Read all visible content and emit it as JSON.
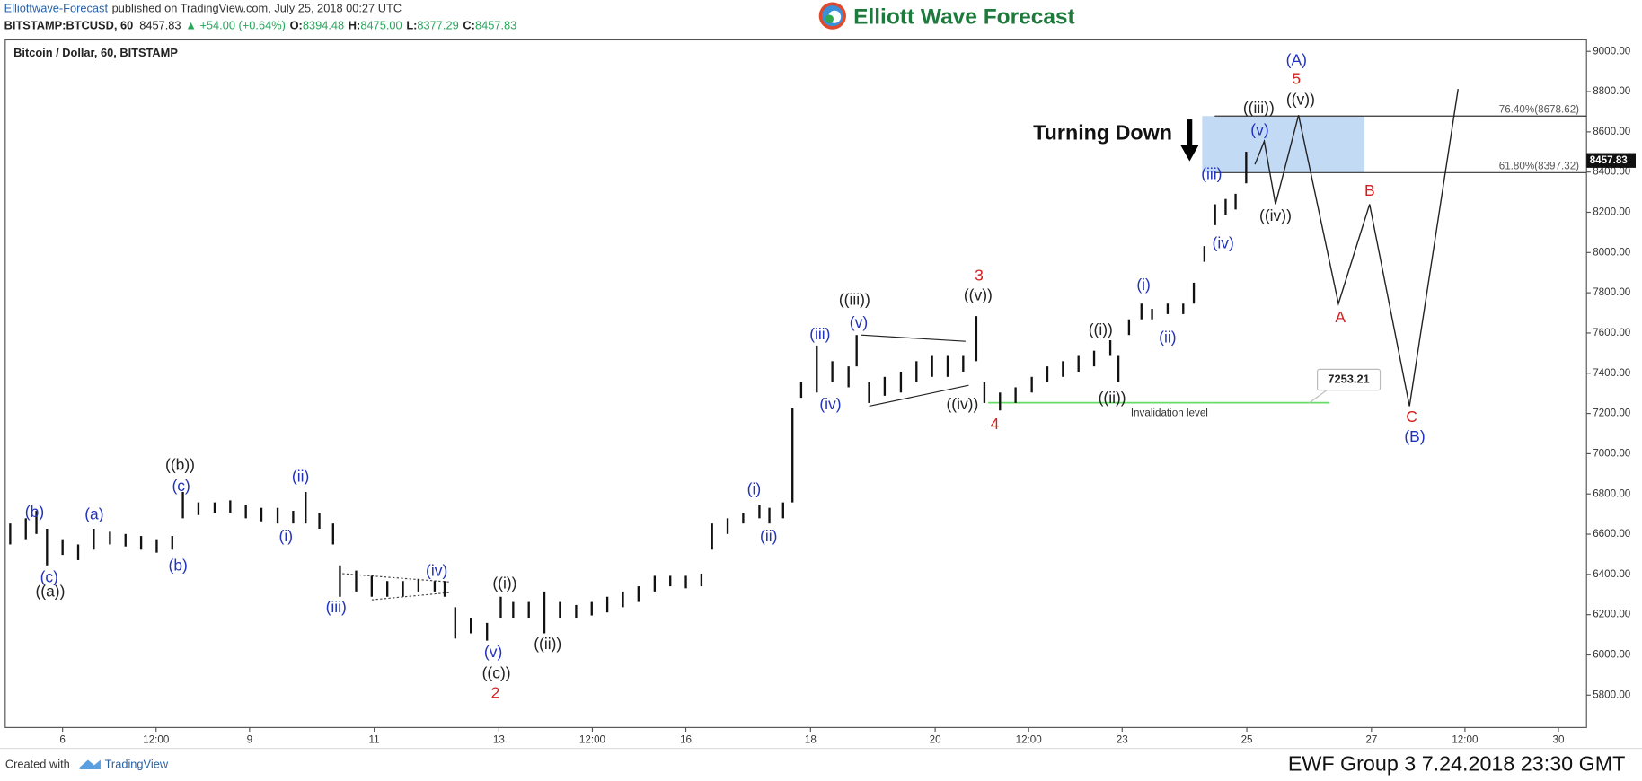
{
  "header": {
    "publisher": "Elliottwave-Forecast",
    "published": "published on TradingView.com, July 25, 2018 00:27 UTC",
    "symbol": "BITSTAMP:BTCUSD, 60",
    "last": "8457.83",
    "change": "▲ +54.00 (+0.64%)",
    "ohlc": [
      {
        "label": "O:",
        "value": "8394.48"
      },
      {
        "label": "H:",
        "value": "8475.00"
      },
      {
        "label": "L:",
        "value": "8377.29"
      },
      {
        "label": "C:",
        "value": "8457.83"
      }
    ],
    "logo": "Elliott Wave Forecast"
  },
  "footer": {
    "created": "Created with",
    "brand": "TradingView",
    "stamp": "EWF Group 3 7.24.2018 23:30 GMT"
  },
  "chart_data": {
    "type": "ohlc",
    "title": "Bitcoin / Dollar, 60, BITSTAMP",
    "color": "#111111",
    "x": [
      5.16,
      5.41,
      5.58,
      5.75,
      6.0,
      6.25,
      6.5,
      6.76,
      7.01,
      7.26,
      7.51,
      7.76,
      7.93,
      8.18,
      8.44,
      8.69,
      8.94,
      9.19,
      9.45,
      9.7,
      9.9,
      10.12,
      10.34,
      10.45,
      10.71,
      10.96,
      11.21,
      11.46,
      11.71,
      11.97,
      12.13,
      12.3,
      12.55,
      12.81,
      13.03,
      13.23,
      13.48,
      13.73,
      13.98,
      14.24,
      14.49,
      14.74,
      14.99,
      15.24,
      15.5,
      15.75,
      16.0,
      16.25,
      16.42,
      16.67,
      16.92,
      17.18,
      17.34,
      17.56,
      17.71,
      17.85,
      18.1,
      18.35,
      18.61,
      18.74,
      18.94,
      19.19,
      19.45,
      19.7,
      19.95,
      20.2,
      20.45,
      20.66,
      20.79,
      21.04,
      21.29,
      21.55,
      21.8,
      22.05,
      22.3,
      22.55,
      22.81,
      22.94,
      23.11,
      23.31,
      23.48,
      23.73,
      23.98,
      24.15,
      24.32,
      24.49,
      24.66,
      24.82,
      24.99
    ],
    "high": [
      6653,
      6679,
      6716,
      6627,
      6575,
      6549,
      6627,
      6612,
      6601,
      6591,
      6575,
      6591,
      6810,
      6758,
      6758,
      6768,
      6747,
      6731,
      6731,
      6716,
      6810,
      6706,
      6653,
      6445,
      6419,
      6393,
      6367,
      6367,
      6378,
      6367,
      6367,
      6237,
      6185,
      6159,
      6289,
      6263,
      6263,
      6315,
      6263,
      6248,
      6263,
      6289,
      6315,
      6341,
      6393,
      6393,
      6393,
      6404,
      6653,
      6679,
      6706,
      6747,
      6731,
      6758,
      7226,
      7356,
      7538,
      7460,
      7434,
      7590,
      7356,
      7382,
      7408,
      7460,
      7486,
      7486,
      7486,
      7684,
      7356,
      7304,
      7330,
      7382,
      7434,
      7460,
      7486,
      7512,
      7564,
      7486,
      7668,
      7746,
      7720,
      7746,
      7746,
      7850,
      8032,
      8240,
      8266,
      8292,
      8501
    ],
    "low": [
      6549,
      6575,
      6601,
      6445,
      6497,
      6471,
      6523,
      6549,
      6539,
      6523,
      6508,
      6523,
      6679,
      6695,
      6706,
      6706,
      6679,
      6664,
      6653,
      6653,
      6653,
      6627,
      6549,
      6289,
      6315,
      6289,
      6289,
      6289,
      6315,
      6315,
      6289,
      6081,
      6107,
      6071,
      6185,
      6185,
      6185,
      6107,
      6185,
      6185,
      6196,
      6211,
      6237,
      6263,
      6315,
      6341,
      6331,
      6341,
      6523,
      6601,
      6653,
      6679,
      6653,
      6679,
      6758,
      7278,
      7304,
      7356,
      7330,
      7434,
      7252,
      7288,
      7304,
      7356,
      7382,
      7382,
      7408,
      7460,
      7252,
      7215,
      7252,
      7304,
      7356,
      7382,
      7408,
      7434,
      7486,
      7356,
      7590,
      7668,
      7668,
      7694,
      7694,
      7746,
      7954,
      8136,
      8188,
      8214,
      8344
    ],
    "last_price": 8457.83,
    "projection": {
      "x": [
        25.13,
        25.28,
        25.46,
        25.83,
        26.47,
        26.97,
        27.61,
        28.39
      ],
      "values": [
        8438,
        8553,
        8240,
        8683,
        7746,
        8240,
        7236,
        8813
      ]
    },
    "fib_levels": [
      {
        "value": 8678.62,
        "label": "76.40%(8678.62)"
      },
      {
        "value": 8397.32,
        "label": "61.80%(8397.32)"
      }
    ],
    "target_zone_color": "#b9d3f2",
    "invalidation": {
      "value": 7253.21,
      "label": "Invalidation level",
      "from": 20.85,
      "to": 26.33,
      "color": "#66dd66"
    },
    "callout": "Turning Down",
    "annotations": [
      {
        "text": "(b)",
        "color": "#2233bb"
      },
      {
        "text": "(c)",
        "color": "#2233bb"
      },
      {
        "text": "((a))",
        "color": "#222222"
      },
      {
        "text": "(a)",
        "color": "#2233bb"
      },
      {
        "text": "((b))",
        "color": "#222222"
      },
      {
        "text": "(c)",
        "color": "#2233bb"
      },
      {
        "text": "(b)",
        "color": "#2233bb"
      },
      {
        "text": "(ii)",
        "color": "#2233bb"
      },
      {
        "text": "(i)",
        "color": "#2233bb"
      },
      {
        "text": "(iii)",
        "color": "#2233bb"
      },
      {
        "text": "(iv)",
        "color": "#2233bb"
      },
      {
        "text": "(v)",
        "color": "#2233bb"
      },
      {
        "text": "((c))",
        "color": "#222222"
      },
      {
        "text": "2",
        "color": "#d42020"
      },
      {
        "text": "((i))",
        "color": "#222222"
      },
      {
        "text": "((ii))",
        "color": "#222222"
      },
      {
        "text": "(i)",
        "color": "#2233bb"
      },
      {
        "text": "(ii)",
        "color": "#2233bb"
      },
      {
        "text": "(iii)",
        "color": "#2233bb"
      },
      {
        "text": "(iv)",
        "color": "#2233bb"
      },
      {
        "text": "((iii))",
        "color": "#222222"
      },
      {
        "text": "(v)",
        "color": "#2233bb"
      },
      {
        "text": "3",
        "color": "#d42020"
      },
      {
        "text": "((v))",
        "color": "#222222"
      },
      {
        "text": "((iv))",
        "color": "#222222"
      },
      {
        "text": "4",
        "color": "#d42020"
      },
      {
        "text": "((i))",
        "color": "#222222"
      },
      {
        "text": "((ii))",
        "color": "#222222"
      },
      {
        "text": "(i)",
        "color": "#2233bb"
      },
      {
        "text": "(ii)",
        "color": "#2233bb"
      },
      {
        "text": "(iii)",
        "color": "#2233bb"
      },
      {
        "text": "(iv)",
        "color": "#2233bb"
      },
      {
        "text": "(v)",
        "color": "#2233bb"
      },
      {
        "text": "((iii))",
        "color": "#222222"
      },
      {
        "text": "((v))",
        "color": "#222222"
      },
      {
        "text": "((iv))",
        "color": "#222222"
      },
      {
        "text": "(A)",
        "color": "#2233bb"
      },
      {
        "text": "5",
        "color": "#d42020"
      },
      {
        "text": "A",
        "color": "#d42020"
      },
      {
        "text": "B",
        "color": "#d42020"
      },
      {
        "text": "C",
        "color": "#d42020"
      },
      {
        "text": "(B)",
        "color": "#2233bb"
      }
    ],
    "xlim": [
      5.08,
      30.45
    ],
    "ylim": [
      5639,
      9057
    ],
    "xticks": [
      6,
      {
        "value": 7.5,
        "label": "12:00"
      },
      9,
      11,
      13,
      {
        "value": 14.5,
        "label": "12:00"
      },
      16,
      18,
      20,
      {
        "value": 21.5,
        "label": "12:00"
      },
      23,
      25,
      27,
      {
        "value": 28.5,
        "label": "12:00"
      },
      30
    ],
    "yticks": [
      {
        "value": 5800,
        "label": "5800.00"
      },
      {
        "value": 6000,
        "label": "6000.00"
      },
      {
        "value": 6200,
        "label": "6200.00"
      },
      {
        "value": 6400,
        "label": "6400.00"
      },
      {
        "value": 6600,
        "label": "6600.00"
      },
      {
        "value": 6800,
        "label": "6800.00"
      },
      {
        "value": 7000,
        "label": "7000.00"
      },
      {
        "value": 7200,
        "label": "7200.00"
      },
      {
        "value": 7400,
        "label": "7400.00"
      },
      {
        "value": 7600,
        "label": "7600.00"
      },
      {
        "value": 7800,
        "label": "7800.00"
      },
      {
        "value": 8000,
        "label": "8000.00"
      },
      {
        "value": 8200,
        "label": "8200.00"
      },
      {
        "value": 8400,
        "label": "8400.00"
      },
      {
        "value": 8600,
        "label": "8600.00"
      },
      {
        "value": 8800,
        "label": "8800.00"
      },
      {
        "value": 9000,
        "label": "9000.00"
      }
    ],
    "grid": false
  }
}
